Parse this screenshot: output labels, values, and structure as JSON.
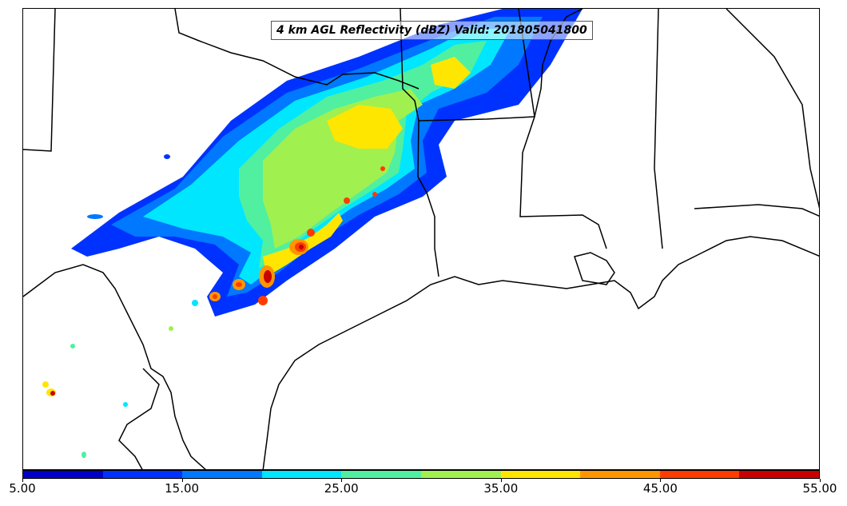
{
  "title": "4 km AGL Reflectivity (dBZ) Valid: 201805041800",
  "colorbar": {
    "colors": [
      "#0000c8",
      "#0032ff",
      "#0078ff",
      "#00e6ff",
      "#50f0a0",
      "#a0f050",
      "#ffe600",
      "#ff9600",
      "#ff3c00",
      "#c80000"
    ],
    "tick_labels": [
      "5.00",
      "15.00",
      "25.00",
      "35.00",
      "45.00",
      "55.00"
    ],
    "range": [
      5,
      55
    ],
    "units": "dBZ"
  },
  "icons": {
    "map": "radar-reflectivity-map"
  }
}
